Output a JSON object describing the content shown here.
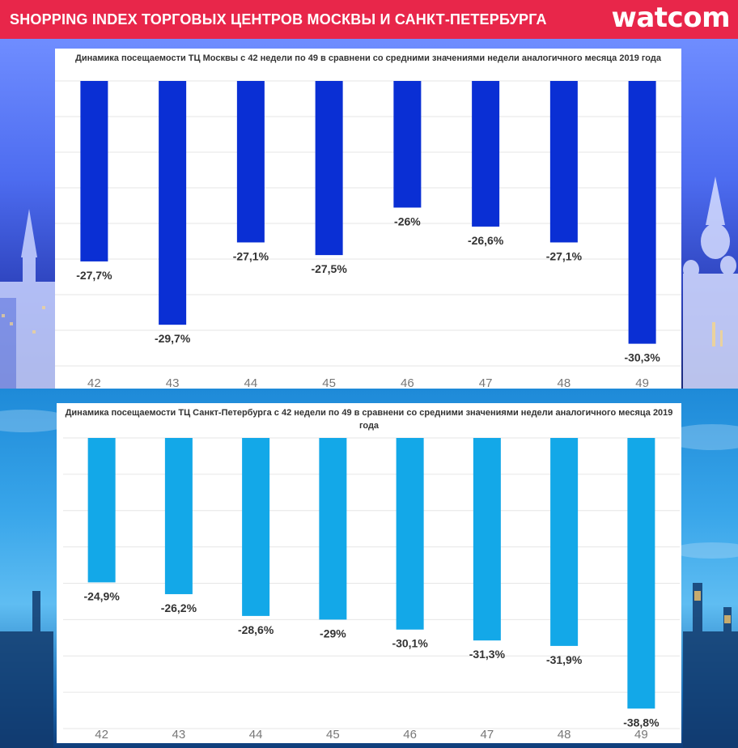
{
  "header": {
    "title": "SHOPPING INDEX ТОРГОВЫХ ЦЕНТРОВ МОСКВЫ И САНКТ-ПЕТЕРБУРГА",
    "logo": "watcom"
  },
  "colors": {
    "header_bg": "#e8264a",
    "moscow_bar": "#0a2fd4",
    "spb_bar": "#13a8e8"
  },
  "chart_data": [
    {
      "type": "bar",
      "title": "Динамика посещаемости ТЦ Москвы с 42 недели по 49 в сравнени со средними  значениями недели аналогичного месяца 2019 года",
      "categories": [
        "42",
        "43",
        "44",
        "45",
        "46",
        "47",
        "48",
        "49"
      ],
      "values": [
        -27.7,
        -29.7,
        -27.1,
        -27.5,
        -26,
        -26.6,
        -27.1,
        -30.3
      ],
      "labels": [
        "-27,7%",
        "-29,7%",
        "-27,1%",
        "-27,5%",
        "-26%",
        "-26,6%",
        "-27,1%",
        "-30,3%"
      ],
      "ylim": [
        -31,
        -22
      ],
      "grid": true
    },
    {
      "type": "bar",
      "title": "Динамика посещаемости ТЦ Санкт-Петербурга с 42 недели по 49 в сравнени со средними значениями недели аналогичного месяца 2019 года",
      "categories": [
        "42",
        "43",
        "44",
        "45",
        "46",
        "47",
        "48",
        "49"
      ],
      "values": [
        -24.9,
        -26.2,
        -28.6,
        -29,
        -30.1,
        -31.3,
        -31.9,
        -38.8
      ],
      "labels": [
        "-24,9%",
        "-26,2%",
        "-28,6%",
        "-29%",
        "-30,1%",
        "-31,3%",
        "-31,9%",
        "-38,8%"
      ],
      "ylim": [
        -41,
        -9
      ],
      "grid": true
    }
  ]
}
